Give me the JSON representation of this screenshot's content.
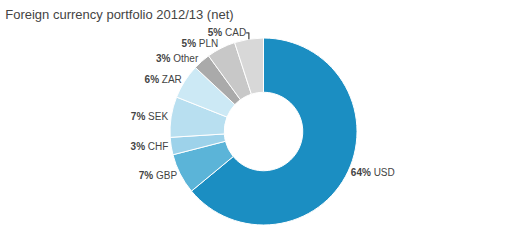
{
  "chart_data": {
    "type": "pie",
    "title": "Foreign currency portfolio 2012/13 (net)",
    "categories": [
      "USD",
      "GBP",
      "CHF",
      "SEK",
      "ZAR",
      "Other",
      "PLN",
      "CAD"
    ],
    "values": [
      64,
      7,
      3,
      7,
      6,
      3,
      5,
      5
    ],
    "value_labels": [
      "64%",
      "7%",
      "3%",
      "7%",
      "6%",
      "3%",
      "5%",
      "5%"
    ],
    "colors": [
      "#1b8ec2",
      "#5bb4d8",
      "#9dd2ea",
      "#b8dff0",
      "#cce9f5",
      "#aaaaaa",
      "#c8c8c8",
      "#d8d8d8"
    ]
  }
}
